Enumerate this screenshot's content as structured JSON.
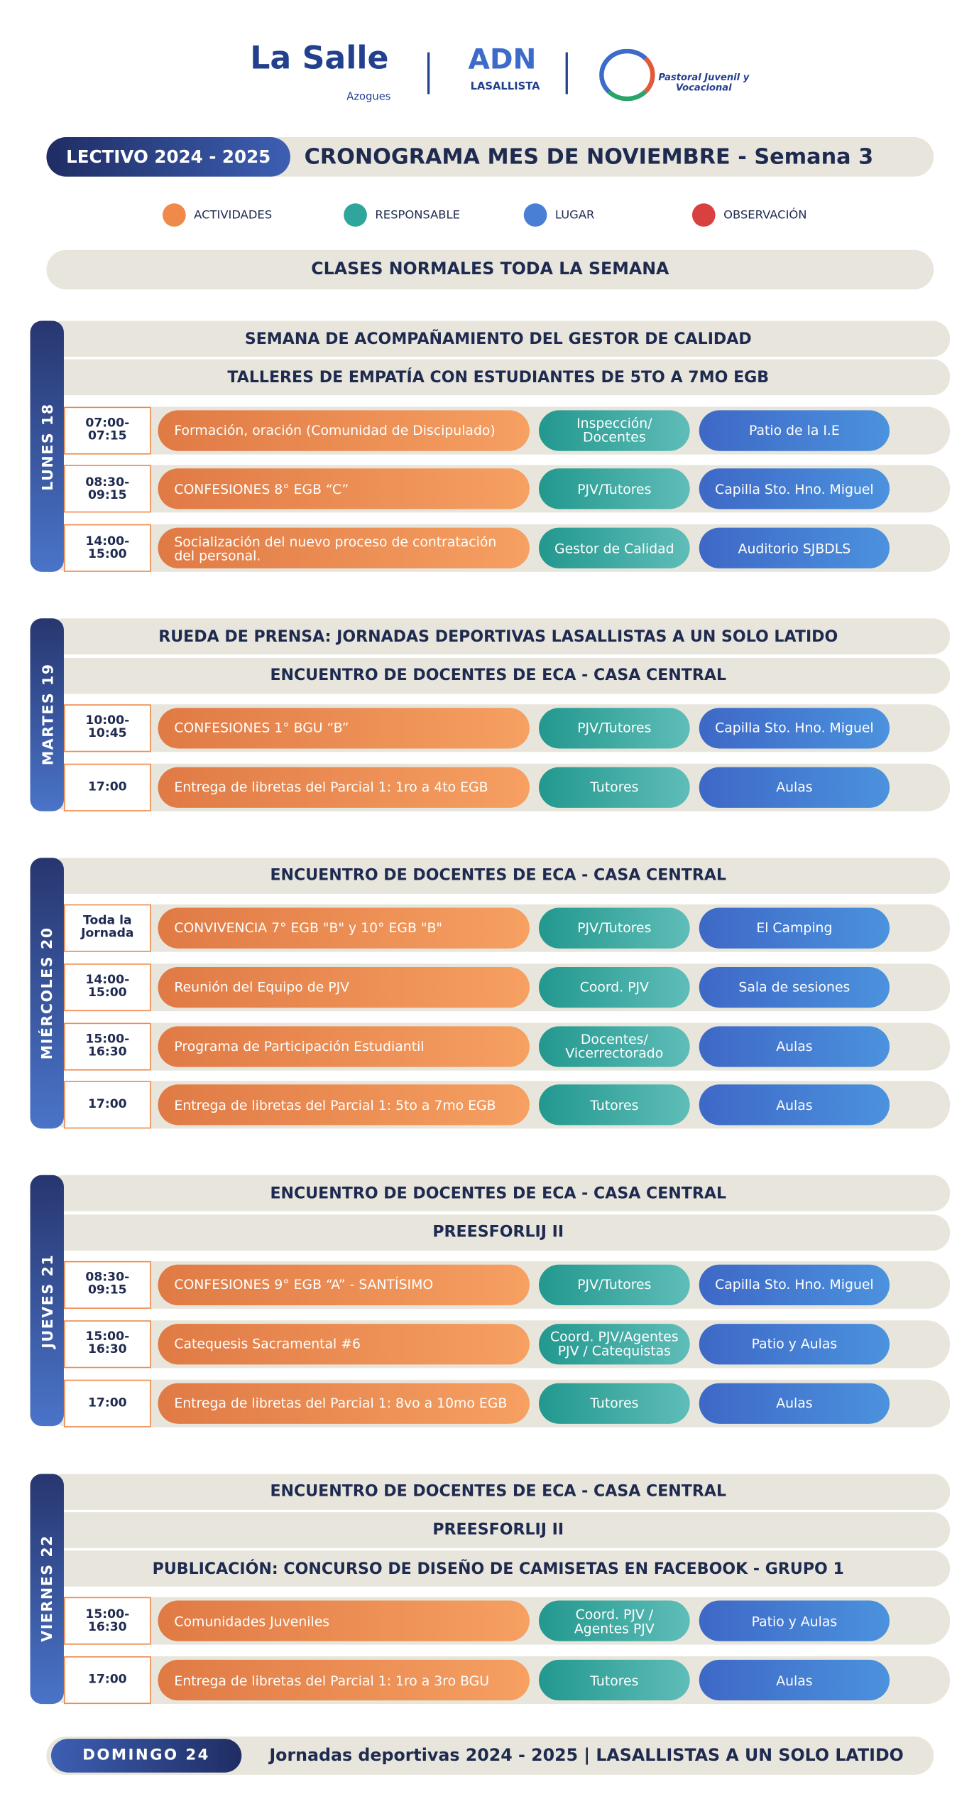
{
  "header": {
    "logo_main": "La Salle",
    "logo_sub": "Azogues",
    "logo_adn": "ADN",
    "logo_adn_sub": "LASALLISTA",
    "logo_pastoral": "Pastoral Juvenil y Vocacional"
  },
  "period": "LECTIVO 2024 - 2025",
  "title": "CRONOGRAMA MES DE NOVIEMBRE - Semana 3",
  "legend": [
    "ACTIVIDADES",
    "RESPONSABLE",
    "LUGAR",
    "OBSERVACIÓN"
  ],
  "notice": "CLASES NORMALES TODA LA SEMANA",
  "days": [
    {
      "label": "LUNES 18",
      "banners": [
        "SEMANA DE ACOMPAÑAMIENTO DEL GESTOR DE CALIDAD",
        "TALLERES DE EMPATÍA CON ESTUDIANTES DE 5TO A 7MO EGB"
      ],
      "rows": [
        {
          "time": "07:00-07:15",
          "activity": "Formación, oración (Comunidad de Discipulado)",
          "responsible": "Inspección/ Docentes",
          "place": "Patio de la I.E"
        },
        {
          "time": "08:30-09:15",
          "activity": "CONFESIONES 8° EGB “C”",
          "responsible": "PJV/Tutores",
          "place": "Capilla Sto. Hno. Miguel"
        },
        {
          "time": "14:00-15:00",
          "activity": "Socialización del nuevo proceso de contratación del personal.",
          "responsible": "Gestor de Calidad",
          "place": "Auditorio SJBDLS"
        }
      ]
    },
    {
      "label": "MARTES 19",
      "banners": [
        "RUEDA DE PRENSA: JORNADAS DEPORTIVAS LASALLISTAS A UN SOLO LATIDO",
        "ENCUENTRO DE DOCENTES DE ECA - CASA CENTRAL"
      ],
      "rows": [
        {
          "time": "10:00-10:45",
          "activity": "CONFESIONES 1° BGU “B”",
          "responsible": "PJV/Tutores",
          "place": "Capilla Sto. Hno. Miguel"
        },
        {
          "time": "17:00",
          "activity": "Entrega de libretas del Parcial 1: 1ro a 4to EGB",
          "responsible": "Tutores",
          "place": "Aulas"
        }
      ]
    },
    {
      "label": "MIÉRCOLES 20",
      "banners": [
        "ENCUENTRO DE DOCENTES DE ECA - CASA CENTRAL"
      ],
      "rows": [
        {
          "time": "Toda la Jornada",
          "activity": "CONVIVENCIA 7° EGB \"B\" y 10° EGB \"B\"",
          "responsible": "PJV/Tutores",
          "place": "El Camping"
        },
        {
          "time": "14:00-15:00",
          "activity": "Reunión del Equipo de PJV",
          "responsible": "Coord. PJV",
          "place": "Sala de sesiones"
        },
        {
          "time": "15:00-16:30",
          "activity": "Programa de Participación Estudiantil",
          "responsible": "Docentes/ Vicerrectorado",
          "place": "Aulas"
        },
        {
          "time": "17:00",
          "activity": "Entrega de libretas del Parcial 1: 5to a 7mo EGB",
          "responsible": "Tutores",
          "place": "Aulas"
        }
      ]
    },
    {
      "label": "JUEVES 21",
      "banners": [
        "ENCUENTRO DE DOCENTES DE ECA - CASA CENTRAL",
        "PREESFORLIJ II"
      ],
      "rows": [
        {
          "time": "08:30-09:15",
          "activity": "CONFESIONES 9° EGB “A” - SANTÍSIMO",
          "responsible": "PJV/Tutores",
          "place": "Capilla Sto. Hno. Miguel"
        },
        {
          "time": "15:00-16:30",
          "activity": "Catequesis Sacramental #6",
          "responsible": "Coord. PJV/Agentes PJV / Catequistas",
          "place": "Patio y Aulas"
        },
        {
          "time": "17:00",
          "activity": "Entrega de libretas del Parcial 1: 8vo a 10mo EGB",
          "responsible": "Tutores",
          "place": "Aulas"
        }
      ]
    },
    {
      "label": "VIERNES 22",
      "banners": [
        "ENCUENTRO DE DOCENTES DE ECA - CASA CENTRAL",
        "PREESFORLIJ II",
        "PUBLICACIÓN: CONCURSO DE DISEÑO DE CAMISETAS EN FACEBOOK - GRUPO 1"
      ],
      "rows": [
        {
          "time": "15:00-16:30",
          "activity": "Comunidades Juveniles",
          "responsible": "Coord. PJV / Agentes PJV",
          "place": "Patio y Aulas"
        },
        {
          "time": "17:00",
          "activity": "Entrega de libretas del Parcial 1: 1ro a 3ro BGU",
          "responsible": "Tutores",
          "place": "Aulas"
        }
      ]
    }
  ],
  "footer": {
    "day": "DOMINGO 24",
    "text": "Jornadas deportivas 2024 - 2025 | LASALLISTAS A UN SOLO LATIDO"
  }
}
